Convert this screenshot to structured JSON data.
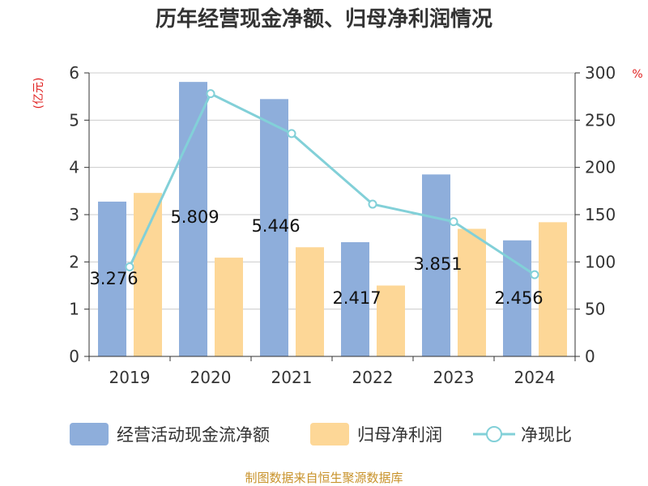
{
  "chart_data": {
    "type": "bar",
    "title": "历年经营现金净额、归母净利润情况",
    "categories": [
      "2019",
      "2020",
      "2021",
      "2022",
      "2023",
      "2024"
    ],
    "series": [
      {
        "name": "经营活动现金流净额",
        "kind": "bar",
        "axis": "left",
        "color": "#8eaedb",
        "values": [
          3.276,
          5.809,
          5.446,
          2.417,
          3.851,
          2.456
        ],
        "labels": [
          "3.276",
          "5.809",
          "5.446",
          "2.417",
          "3.851",
          "2.456"
        ]
      },
      {
        "name": "归母净利润",
        "kind": "bar",
        "axis": "left",
        "color": "#fdd797",
        "values": [
          3.46,
          2.09,
          2.31,
          1.5,
          2.7,
          2.84
        ]
      },
      {
        "name": "净现比",
        "kind": "line",
        "axis": "right",
        "color": "#82d0d8",
        "values": [
          94.7,
          278.0,
          235.8,
          161.1,
          142.6,
          86.5
        ]
      }
    ],
    "y_left": {
      "label": "(亿元)",
      "min": 0,
      "max": 6,
      "ticks": [
        "0",
        "1",
        "2",
        "3",
        "4",
        "5",
        "6"
      ]
    },
    "y_right": {
      "label": "%",
      "min": 0,
      "max": 300,
      "ticks": [
        "0",
        "50",
        "100",
        "150",
        "200",
        "250",
        "300"
      ]
    },
    "grid": true,
    "legend_position": "bottom"
  },
  "source": "制图数据来自恒生聚源数据库"
}
